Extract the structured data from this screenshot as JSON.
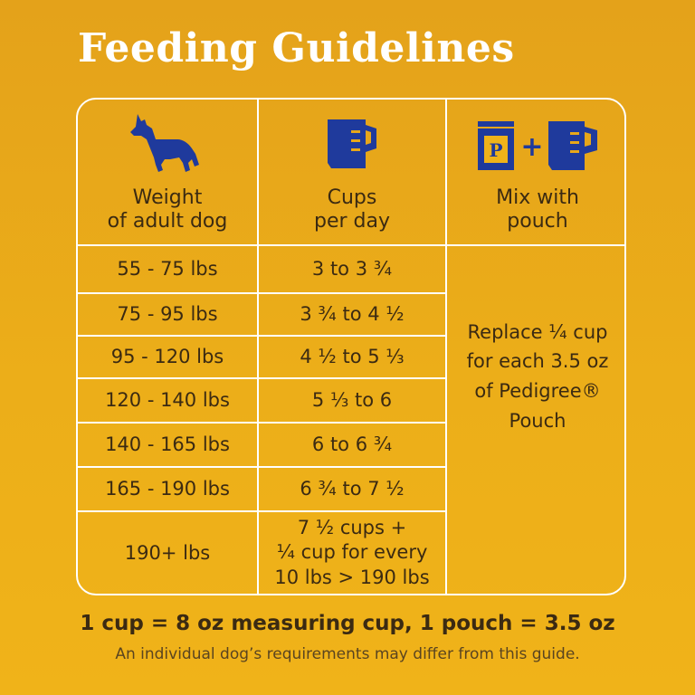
{
  "title": "Feeding Guidelines",
  "headers": {
    "weight": [
      "Weight",
      "of adult dog"
    ],
    "cups": [
      "Cups",
      "per day"
    ],
    "mix": [
      "Mix with",
      "pouch"
    ]
  },
  "icons": {
    "weight": "dog-icon",
    "cups": "measuring-cup-icon",
    "mix": "pouch-plus-cup-icon",
    "pouch_letter": "P",
    "plus": "+"
  },
  "rows": [
    {
      "weight": "55 - 75 lbs",
      "cups": "3 to 3 ¾"
    },
    {
      "weight": "75 - 95 lbs",
      "cups": "3 ¾ to 4 ½"
    },
    {
      "weight": "95 - 120 lbs",
      "cups": "4 ½ to 5 ⅓"
    },
    {
      "weight": "120 - 140 lbs",
      "cups": "5 ⅓ to 6"
    },
    {
      "weight": "140 - 165 lbs",
      "cups": "6 to 6 ¾"
    },
    {
      "weight": "165 - 190 lbs",
      "cups": "6 ¾ to 7 ½"
    },
    {
      "weight": "190+ lbs",
      "cups": [
        "7 ½ cups +",
        "¼ cup for every",
        "10 lbs > 190 lbs"
      ]
    }
  ],
  "pouch_note": [
    "Replace ¼ cup",
    "for each 3.5 oz",
    "of Pedigree®",
    "Pouch"
  ],
  "footer": {
    "main": "1 cup = 8 oz measuring cup, 1 pouch = 3.5 oz",
    "sub": "An individual dog’s requirements may differ from this guide."
  },
  "colors": {
    "background": "#e8a81a",
    "icon_blue": "#1f3a9c",
    "text": "#3b2a12",
    "lines": "#ffffff"
  }
}
